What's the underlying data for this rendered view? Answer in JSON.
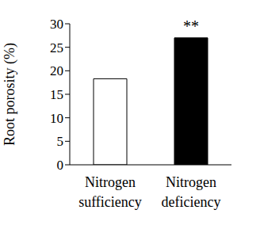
{
  "chart_data": {
    "type": "bar",
    "categories": [
      "Nitrogen sufficiency",
      "Nitrogen deficiency"
    ],
    "values": [
      18.3,
      27
    ],
    "colors": [
      "#ffffff",
      "#000000"
    ],
    "y_label": "Root porosity (%)",
    "ylim": [
      0,
      30
    ],
    "yticks": [
      0,
      5,
      10,
      15,
      20,
      25,
      30
    ],
    "grid": false,
    "annotations": [
      {
        "text": "**",
        "category": "Nitrogen deficiency"
      }
    ]
  }
}
